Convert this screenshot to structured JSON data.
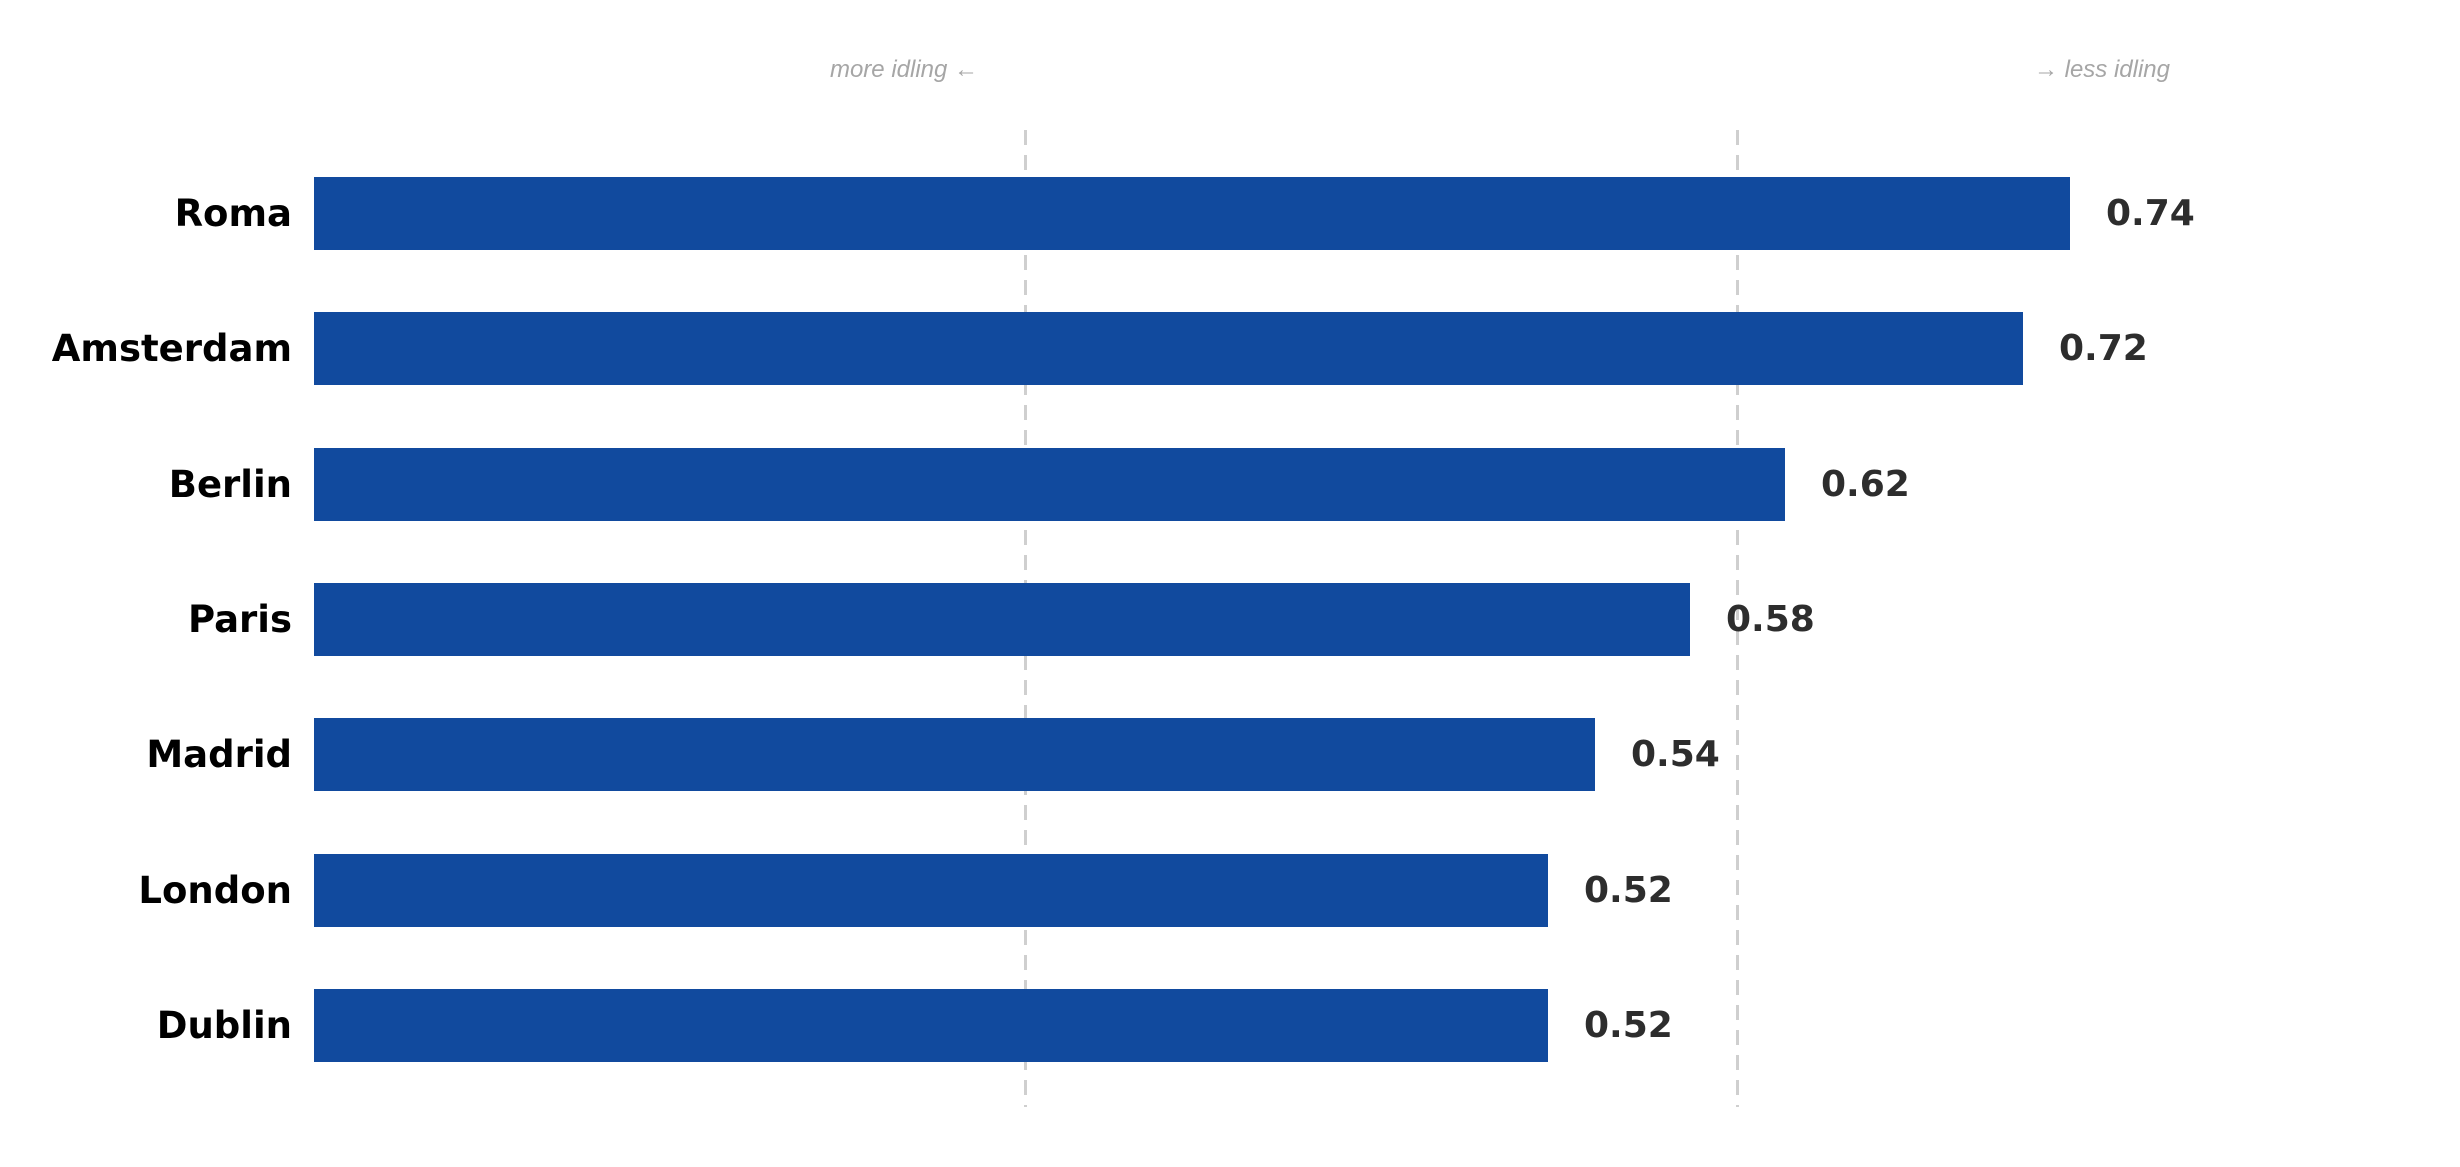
{
  "annotations": {
    "left": "more idling ←",
    "right": "→ less idling"
  },
  "chart_data": {
    "type": "bar",
    "orientation": "horizontal",
    "title": "",
    "xlabel": "",
    "ylabel": "",
    "categories": [
      "Roma",
      "Amsterdam",
      "Berlin",
      "Paris",
      "Madrid",
      "London",
      "Dublin"
    ],
    "values": [
      0.74,
      0.72,
      0.62,
      0.58,
      0.54,
      0.52,
      0.52
    ],
    "value_labels": [
      "0.74",
      "0.72",
      "0.62",
      "0.58",
      "0.54",
      "0.52",
      "0.52"
    ],
    "xlim": [
      0,
      0.9
    ],
    "gridlines_x": [
      0.3,
      0.6
    ],
    "grid": "vertical-dashed",
    "legend": "none",
    "annotations": [
      "more idling ←",
      "→ less idling"
    ]
  },
  "colors": {
    "bar": "#114a9e",
    "gridline": "#cfcfcf",
    "annotation_text": "#a6a6a6",
    "category_label": "#000000",
    "value_label": "#2d2d2d",
    "background": "#ffffff"
  }
}
